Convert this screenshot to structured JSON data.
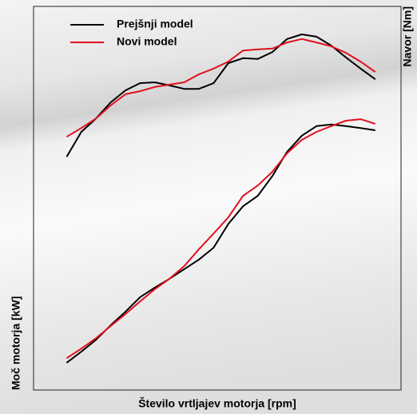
{
  "chart_data": {
    "type": "line",
    "x_label": "Število vrtljajev motorja [rpm]",
    "y_label": "Moč motorja [kW]",
    "y2_label": "Navor [Nm]",
    "x": [
      9,
      13,
      17,
      21,
      25,
      29,
      33,
      37,
      41,
      45,
      49,
      53,
      57,
      61,
      65,
      69,
      73,
      77,
      81,
      85,
      89,
      93
    ],
    "xlim": [
      0,
      100
    ],
    "ylim": [
      0,
      100
    ],
    "y2lim": [
      0,
      100
    ],
    "series": [
      {
        "name": "Prejšnji model",
        "color": "#000000",
        "axis": "y2",
        "values": [
          60.8,
          67.3,
          70.8,
          75,
          78.1,
          80,
          80.2,
          79.4,
          78.5,
          78.5,
          80,
          85.2,
          86.5,
          86.3,
          88.1,
          91.5,
          92.7,
          92.1,
          89.8,
          86.7,
          83.8,
          81.0
        ]
      },
      {
        "name": "Novi model",
        "color": "#e0101e",
        "axis": "y2",
        "values": [
          66,
          68.3,
          70.8,
          74.2,
          77.1,
          77.9,
          79,
          79.6,
          80.2,
          82.3,
          83.8,
          85.6,
          88.5,
          88.8,
          89,
          90.6,
          91.5,
          90.6,
          89.6,
          87.9,
          85.6,
          82.9
        ]
      },
      {
        "name": "Prejšnji model",
        "color": "#000000",
        "values": [
          7.1,
          10,
          13.1,
          16.9,
          20.4,
          24.2,
          26.7,
          29,
          31.5,
          34,
          37.1,
          43.3,
          47.9,
          50.6,
          55.8,
          62.1,
          66.3,
          68.8,
          69.2,
          68.8,
          68.3,
          67.7
        ]
      },
      {
        "name": "Novi model",
        "color": "#e0101e",
        "values": [
          8.3,
          10.8,
          13.5,
          16.7,
          19.8,
          23.1,
          26.3,
          29,
          32.3,
          36.7,
          40.8,
          45,
          50.6,
          53.3,
          56.9,
          61.7,
          65.2,
          67.3,
          68.8,
          70.2,
          70.6,
          69.4
        ]
      }
    ]
  }
}
